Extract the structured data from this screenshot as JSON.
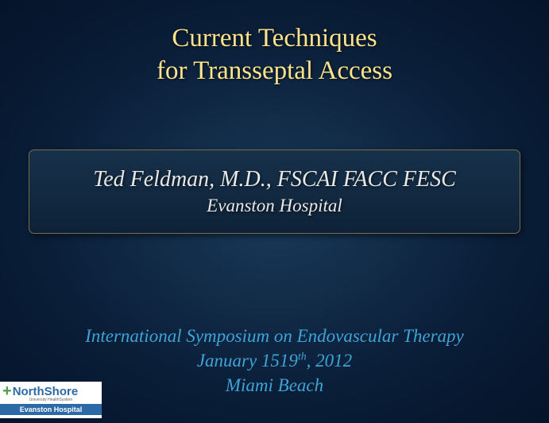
{
  "background": {
    "gradient_center": "#1a3a5a",
    "gradient_mid": "#0a1e38",
    "gradient_edge": "#04142a"
  },
  "title": {
    "line1": "Current Techniques",
    "line2": "for Transseptal Access",
    "color": "#fde389",
    "fontsize": 33
  },
  "author_box": {
    "name": "Ted Feldman, M.D., FSCAI FACC FESC",
    "affiliation": "Evanston Hospital",
    "text_color": "#e8e8e8",
    "name_fontsize": 28,
    "affil_fontsize": 23,
    "bg_top": "#17314a",
    "bg_bottom": "#0d2238",
    "border_color": "#7a6d4a",
    "border_radius": 7
  },
  "event": {
    "line1": "International Symposium on Endovascular Therapy",
    "line2_pre": "January 1519",
    "line2_sup": "th",
    "line2_post": ", 2012",
    "line3": "Miami Beach",
    "color": "#3ea4d7",
    "fontsize": 23
  },
  "logo": {
    "plus": "+",
    "name": "NorthShore",
    "mid": "University HealthSystem",
    "band": "Evanston Hospital",
    "plus_color": "#4aa04a",
    "name_color": "#2b6aa6",
    "band_bg": "#2b6aa6"
  }
}
